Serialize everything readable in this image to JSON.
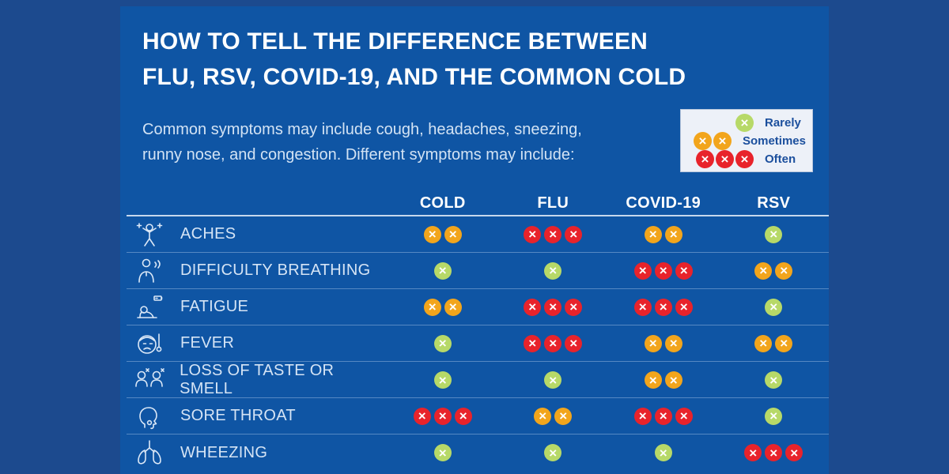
{
  "title": {
    "line1": "HOW TO TELL THE DIFFERENCE BETWEEN",
    "line2": "FLU, RSV, COVID-19, AND THE COMMON COLD"
  },
  "intro": {
    "line1": "Common symptoms may include cough, headaches, sneezing,",
    "line2": "runny nose, and congestion. Different symptoms may include:"
  },
  "legend": {
    "items": [
      {
        "severity": "rarely",
        "label": "Rarely"
      },
      {
        "severity": "sometimes",
        "label": "Sometimes"
      },
      {
        "severity": "often",
        "label": "Often"
      }
    ]
  },
  "severity_map": {
    "rarely": {
      "count": 1,
      "color": "#b7d968"
    },
    "sometimes": {
      "count": 2,
      "color": "#f2a51c"
    },
    "often": {
      "count": 3,
      "color": "#e8232b"
    }
  },
  "colors": {
    "outer_bg": "#1c4a8e",
    "panel_bg": "#0f55a4",
    "title_text": "#ffffff",
    "body_text": "#d3e3f4",
    "legend_bg": "#edf1f8",
    "legend_text": "#1b4f9d",
    "dot_rarely": "#b7d968",
    "dot_sometimes": "#f2a51c",
    "dot_often": "#e8232b"
  },
  "chart_data": {
    "type": "table",
    "title": "HOW TO TELL THE DIFFERENCE BETWEEN FLU, RSV, COVID-19, AND THE COMMON COLD",
    "legend": {
      "rarely": 1,
      "sometimes": 2,
      "often": 3
    },
    "columns": [
      "COLD",
      "FLU",
      "COVID-19",
      "RSV"
    ],
    "rows": [
      {
        "symptom": "ACHES",
        "icon": "aches-icon",
        "values": {
          "COLD": "sometimes",
          "FLU": "often",
          "COVID-19": "sometimes",
          "RSV": "rarely"
        }
      },
      {
        "symptom": "DIFFICULTY BREATHING",
        "icon": "difficulty-breathing-icon",
        "values": {
          "COLD": "rarely",
          "FLU": "rarely",
          "COVID-19": "often",
          "RSV": "sometimes"
        }
      },
      {
        "symptom": "FATIGUE",
        "icon": "fatigue-icon",
        "values": {
          "COLD": "sometimes",
          "FLU": "often",
          "COVID-19": "often",
          "RSV": "rarely"
        }
      },
      {
        "symptom": "FEVER",
        "icon": "fever-icon",
        "values": {
          "COLD": "rarely",
          "FLU": "often",
          "COVID-19": "sometimes",
          "RSV": "sometimes"
        }
      },
      {
        "symptom": "LOSS OF TASTE OR SMELL",
        "icon": "loss-of-taste-smell-icon",
        "values": {
          "COLD": "rarely",
          "FLU": "rarely",
          "COVID-19": "sometimes",
          "RSV": "rarely"
        }
      },
      {
        "symptom": "SORE THROAT",
        "icon": "sore-throat-icon",
        "values": {
          "COLD": "often",
          "FLU": "sometimes",
          "COVID-19": "often",
          "RSV": "rarely"
        }
      },
      {
        "symptom": "WHEEZING",
        "icon": "wheezing-icon",
        "values": {
          "COLD": "rarely",
          "FLU": "rarely",
          "COVID-19": "rarely",
          "RSV": "often"
        }
      }
    ]
  }
}
